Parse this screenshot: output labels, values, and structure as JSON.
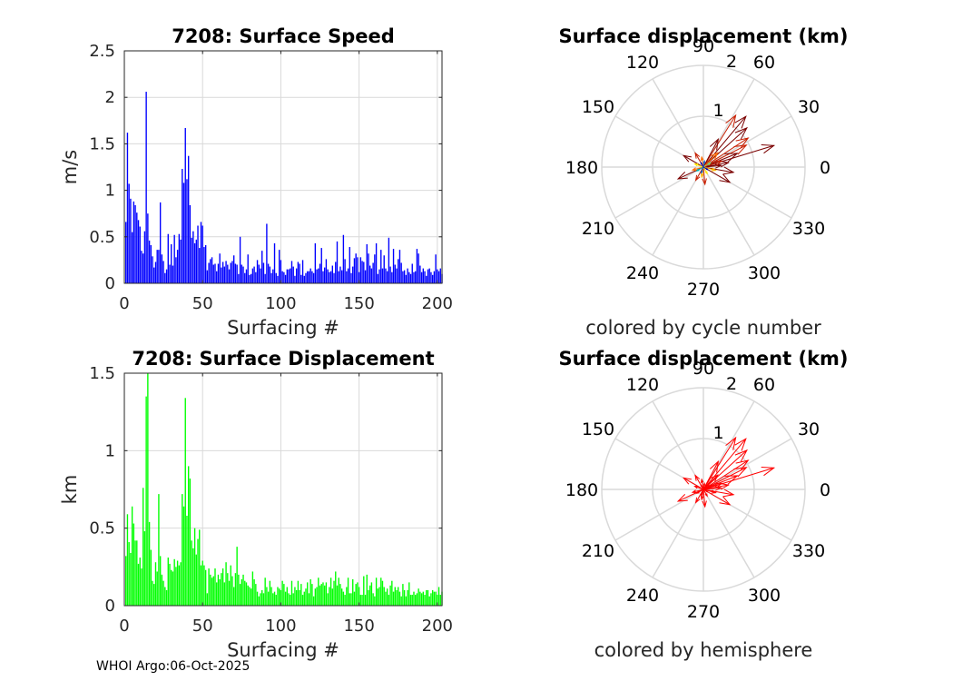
{
  "footer": "WHOI Argo:06-Oct-2025",
  "colors": {
    "speed_bar": "#0000ff",
    "displacement_bar": "#00ff00",
    "hemisphere_arrow": "#ff0000",
    "grid": "#d9d9d9",
    "axis": "#262626"
  },
  "chart_data": [
    {
      "id": "speed",
      "type": "bar",
      "title": "7208: Surface Speed",
      "xlabel": "Surfacing #",
      "ylabel": "m/s",
      "xlim": [
        0,
        203
      ],
      "ylim": [
        0,
        2.5
      ],
      "xticks": [
        0,
        50,
        100,
        150,
        200
      ],
      "yticks": [
        0,
        0.5,
        1,
        1.5,
        2,
        2.5
      ],
      "ytick_labels": [
        "0",
        "0.5",
        "1",
        "1.5",
        "2",
        "2.5"
      ],
      "grid": true,
      "values": [
        0.66,
        1.62,
        1.07,
        0.91,
        0.55,
        0.88,
        0.84,
        0.76,
        0.68,
        0.61,
        0.35,
        0.32,
        0.56,
        2.06,
        0.75,
        0.46,
        0.41,
        0.29,
        0.17,
        0.23,
        0.36,
        0.36,
        0.87,
        0.31,
        0.24,
        0.11,
        0.15,
        0.53,
        0.2,
        0.42,
        0.19,
        0.52,
        0.28,
        0.36,
        0.53,
        0.47,
        1.23,
        1.08,
        1.67,
        1.12,
        1.37,
        0.84,
        0.49,
        0.56,
        0.43,
        0.47,
        0.62,
        0.38,
        0.66,
        0.62,
        0.39,
        0.41,
        0.14,
        0.22,
        0.26,
        0.28,
        0.2,
        0.21,
        0.13,
        0.21,
        0.32,
        0.17,
        0.23,
        0.18,
        0.24,
        0.2,
        0.15,
        0.22,
        0.24,
        0.3,
        0.21,
        0.2,
        0.1,
        0.5,
        0.2,
        0.18,
        0.11,
        0.15,
        0.31,
        0.09,
        0.1,
        0.16,
        0.18,
        0.12,
        0.25,
        0.2,
        0.16,
        0.35,
        0.22,
        0.1,
        0.64,
        0.21,
        0.18,
        0.11,
        0.15,
        0.43,
        0.11,
        0.08,
        0.36,
        0.25,
        0.13,
        0.12,
        0.09,
        0.15,
        0.15,
        0.16,
        0.24,
        0.18,
        0.08,
        0.16,
        0.23,
        0.21,
        0.09,
        0.25,
        0.08,
        0.11,
        0.13,
        0.13,
        0.16,
        0.13,
        0.11,
        0.43,
        0.15,
        0.16,
        0.21,
        0.38,
        0.13,
        0.17,
        0.26,
        0.15,
        0.12,
        0.13,
        0.19,
        0.11,
        0.23,
        0.45,
        0.13,
        0.18,
        0.14,
        0.52,
        0.26,
        0.13,
        0.16,
        0.39,
        0.11,
        0.18,
        0.27,
        0.32,
        0.28,
        0.12,
        0.28,
        0.24,
        0.23,
        0.14,
        0.42,
        0.32,
        0.19,
        0.16,
        0.22,
        0.31,
        0.43,
        0.1,
        0.15,
        0.36,
        0.16,
        0.3,
        0.16,
        0.13,
        0.49,
        0.18,
        0.12,
        0.37,
        0.2,
        0.16,
        0.26,
        0.36,
        0.22,
        0.13,
        0.14,
        0.09,
        0.16,
        0.12,
        0.1,
        0.21,
        0.12,
        0.13,
        0.37,
        0.32,
        0.19,
        0.12,
        0.16,
        0.13,
        0.08,
        0.15,
        0.16,
        0.12,
        0.09,
        0.13,
        0.31,
        0.15,
        0.13,
        0.16,
        0.1
      ]
    },
    {
      "id": "displacement",
      "type": "bar",
      "title": "7208: Surface Displacement",
      "xlabel": "Surfacing #",
      "ylabel": "km",
      "xlim": [
        0,
        203
      ],
      "ylim": [
        0,
        1.5
      ],
      "xticks": [
        0,
        50,
        100,
        150,
        200
      ],
      "yticks": [
        0,
        0.5,
        1,
        1.5
      ],
      "ytick_labels": [
        "0",
        "0.5",
        "1",
        "1.5"
      ],
      "grid": true,
      "values": [
        0.32,
        0.59,
        0.41,
        0.34,
        0.64,
        0.53,
        0.42,
        0.42,
        0.27,
        0.31,
        0.24,
        0.76,
        0.48,
        1.35,
        1.5,
        0.54,
        0.36,
        0.16,
        0.14,
        0.28,
        0.22,
        0.72,
        0.32,
        0.2,
        0.16,
        0.12,
        0.1,
        0.31,
        0.27,
        0.23,
        0.22,
        0.3,
        0.25,
        0.29,
        0.26,
        0.28,
        0.72,
        0.64,
        1.34,
        0.58,
        0.9,
        0.82,
        0.42,
        0.37,
        0.5,
        0.33,
        0.43,
        0.49,
        0.26,
        0.29,
        0.26,
        0.23,
        0.08,
        0.24,
        0.2,
        0.18,
        0.19,
        0.24,
        0.15,
        0.2,
        0.17,
        0.21,
        0.24,
        0.15,
        0.28,
        0.21,
        0.16,
        0.26,
        0.19,
        0.12,
        0.21,
        0.38,
        0.2,
        0.14,
        0.17,
        0.2,
        0.16,
        0.15,
        0.13,
        0.12,
        0.11,
        0.22,
        0.17,
        0.14,
        0.09,
        0.06,
        0.08,
        0.1,
        0.08,
        0.18,
        0.12,
        0.09,
        0.16,
        0.12,
        0.08,
        0.09,
        0.07,
        0.12,
        0.11,
        0.1,
        0.16,
        0.14,
        0.09,
        0.12,
        0.08,
        0.07,
        0.16,
        0.08,
        0.12,
        0.1,
        0.16,
        0.1,
        0.14,
        0.07,
        0.09,
        0.11,
        0.15,
        0.08,
        0.17,
        0.14,
        0.06,
        0.11,
        0.12,
        0.18,
        0.13,
        0.14,
        0.15,
        0.13,
        0.15,
        0.08,
        0.12,
        0.18,
        0.11,
        0.16,
        0.22,
        0.13,
        0.18,
        0.14,
        0.11,
        0.09,
        0.07,
        0.12,
        0.18,
        0.08,
        0.08,
        0.17,
        0.09,
        0.14,
        0.15,
        0.12,
        0.07,
        0.07,
        0.19,
        0.07,
        0.2,
        0.1,
        0.13,
        0.15,
        0.08,
        0.06,
        0.18,
        0.11,
        0.12,
        0.18,
        0.16,
        0.12,
        0.09,
        0.11,
        0.07,
        0.13,
        0.16,
        0.09,
        0.12,
        0.1,
        0.12,
        0.09,
        0.06,
        0.14,
        0.1,
        0.06,
        0.1,
        0.15,
        0.07,
        0.07,
        0.09,
        0.07,
        0.08,
        0.11,
        0.09,
        0.08,
        0.09,
        0.07,
        0.1,
        0.1,
        0.06,
        0.08,
        0.1,
        0.09,
        0.09,
        0.07,
        0.12,
        0.07,
        0.09
      ]
    },
    {
      "id": "polar-cycle",
      "type": "polar_arrows",
      "title": "Surface displacement (km)",
      "caption": "colored by cycle number",
      "rmax": 2,
      "radial_ticks": [
        1,
        2
      ],
      "radial_tick_labels": [
        "1",
        "2"
      ],
      "angle_ticks": [
        0,
        30,
        60,
        90,
        120,
        150,
        180,
        210,
        240,
        270,
        300,
        330
      ],
      "angle_tick_labels": [
        "0",
        "30",
        "60",
        "90",
        "120",
        "150",
        "180",
        "210",
        "240",
        "270",
        "300",
        "330"
      ],
      "color_scale": [
        "#7a0000",
        "#c81e00",
        "#ff6a00",
        "#ffb400",
        "#ffe600",
        "#7dd87d",
        "#00b4b4",
        "#005ad2",
        "#0000b4"
      ],
      "arrows": [
        {
          "angle": 17,
          "r": 1.45,
          "cycle": 5
        },
        {
          "angle": 50,
          "r": 1.3,
          "cycle": 14
        },
        {
          "angle": 42,
          "r": 1.15,
          "cycle": 15
        },
        {
          "angle": 33,
          "r": 1.05,
          "cycle": 38
        },
        {
          "angle": 58,
          "r": 1.2,
          "cycle": 40
        },
        {
          "angle": 27,
          "r": 0.95,
          "cycle": 41
        },
        {
          "angle": 150,
          "r": 0.45,
          "cycle": 2
        },
        {
          "angle": 205,
          "r": 0.55,
          "cycle": 3
        },
        {
          "angle": 330,
          "r": 0.6,
          "cycle": 4
        },
        {
          "angle": -10,
          "r": 0.6,
          "cycle": 6
        },
        {
          "angle": 10,
          "r": 0.5,
          "cycle": 9
        },
        {
          "angle": 5,
          "r": 0.35,
          "cycle": 12
        },
        {
          "angle": 22,
          "r": 0.72,
          "cycle": 22
        },
        {
          "angle": 62,
          "r": 0.62,
          "cycle": 20
        },
        {
          "angle": 18,
          "r": 0.38,
          "cycle": 25
        },
        {
          "angle": 120,
          "r": 0.32,
          "cycle": 31
        },
        {
          "angle": 240,
          "r": 0.3,
          "cycle": 34
        },
        {
          "angle": 275,
          "r": 0.34,
          "cycle": 44
        },
        {
          "angle": 45,
          "r": 0.4,
          "cycle": 47
        },
        {
          "angle": 195,
          "r": 0.22,
          "cycle": 52
        },
        {
          "angle": 100,
          "r": 0.2,
          "cycle": 60
        },
        {
          "angle": 345,
          "r": 0.25,
          "cycle": 72
        },
        {
          "angle": 260,
          "r": 0.2,
          "cycle": 80
        },
        {
          "angle": 160,
          "r": 0.18,
          "cycle": 95
        },
        {
          "angle": 300,
          "r": 0.15,
          "cycle": 110
        },
        {
          "angle": 30,
          "r": 0.16,
          "cycle": 125
        },
        {
          "angle": 210,
          "r": 0.15,
          "cycle": 140
        },
        {
          "angle": 80,
          "r": 0.12,
          "cycle": 160
        },
        {
          "angle": 250,
          "r": 0.12,
          "cycle": 175
        },
        {
          "angle": 120,
          "r": 0.1,
          "cycle": 190
        },
        {
          "angle": 330,
          "r": 0.1,
          "cycle": 200
        }
      ]
    },
    {
      "id": "polar-hemisphere",
      "type": "polar_arrows",
      "title": "Surface displacement (km)",
      "caption": "colored by hemisphere",
      "rmax": 2,
      "radial_ticks": [
        1,
        2
      ],
      "radial_tick_labels": [
        "1",
        "2"
      ],
      "angle_ticks": [
        0,
        30,
        60,
        90,
        120,
        150,
        180,
        210,
        240,
        270,
        300,
        330
      ],
      "angle_tick_labels": [
        "0",
        "30",
        "60",
        "90",
        "120",
        "150",
        "180",
        "210",
        "240",
        "270",
        "300",
        "330"
      ],
      "color": "#ff0000",
      "arrows": [
        {
          "angle": 17,
          "r": 1.45
        },
        {
          "angle": 50,
          "r": 1.3
        },
        {
          "angle": 42,
          "r": 1.15
        },
        {
          "angle": 33,
          "r": 1.05
        },
        {
          "angle": 58,
          "r": 1.2
        },
        {
          "angle": 27,
          "r": 0.95
        },
        {
          "angle": 150,
          "r": 0.45
        },
        {
          "angle": 205,
          "r": 0.55
        },
        {
          "angle": 330,
          "r": 0.6
        },
        {
          "angle": -10,
          "r": 0.6
        },
        {
          "angle": 10,
          "r": 0.5
        },
        {
          "angle": 5,
          "r": 0.35
        },
        {
          "angle": 22,
          "r": 0.72
        },
        {
          "angle": 62,
          "r": 0.62
        },
        {
          "angle": 18,
          "r": 0.38
        },
        {
          "angle": 120,
          "r": 0.32
        },
        {
          "angle": 240,
          "r": 0.3
        },
        {
          "angle": 275,
          "r": 0.34
        },
        {
          "angle": 45,
          "r": 0.4
        },
        {
          "angle": 195,
          "r": 0.22
        },
        {
          "angle": 100,
          "r": 0.2
        },
        {
          "angle": 345,
          "r": 0.25
        },
        {
          "angle": 260,
          "r": 0.2
        },
        {
          "angle": 160,
          "r": 0.18
        },
        {
          "angle": 300,
          "r": 0.15
        },
        {
          "angle": 30,
          "r": 0.16
        },
        {
          "angle": 210,
          "r": 0.15
        },
        {
          "angle": 80,
          "r": 0.12
        },
        {
          "angle": 250,
          "r": 0.12
        },
        {
          "angle": 120,
          "r": 0.1
        },
        {
          "angle": 330,
          "r": 0.1
        }
      ]
    }
  ]
}
